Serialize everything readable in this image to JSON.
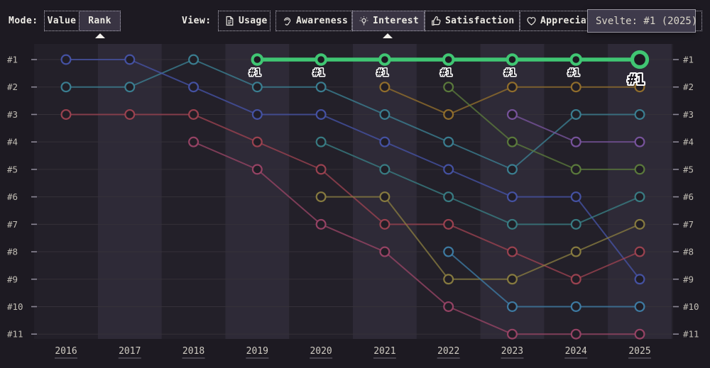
{
  "mode": {
    "label": "Mode:",
    "options": [
      {
        "label": "Value",
        "selected": false
      },
      {
        "label": "Rank",
        "selected": true
      }
    ]
  },
  "view": {
    "label": "View:",
    "tabs": [
      {
        "label": "Usage",
        "icon": "document-icon",
        "selected": false
      },
      {
        "label": "Awareness",
        "icon": "ear-icon",
        "selected": false
      },
      {
        "label": "Interest",
        "icon": "lightbulb-icon",
        "selected": true
      },
      {
        "label": "Satisfaction",
        "icon": "thumbs-up-icon",
        "selected": false
      },
      {
        "label": "Appreciation",
        "icon": "heart-icon",
        "selected": false
      }
    ]
  },
  "tooltip": {
    "text": "Svelte: #1 (2025)"
  },
  "chart_data": {
    "type": "line",
    "subtype": "bump-rank",
    "x_labels": [
      "2016",
      "2017",
      "2018",
      "2019",
      "2020",
      "2021",
      "2022",
      "2023",
      "2024",
      "2025"
    ],
    "y_labels": [
      "#1",
      "#2",
      "#3",
      "#4",
      "#5",
      "#6",
      "#7",
      "#8",
      "#9",
      "#10",
      "#11"
    ],
    "y_axis_sides": "both",
    "grid": true,
    "highlighted_series": "svelte",
    "highlight_color": "#40c673",
    "series": [
      {
        "id": "teal-a",
        "color": "#3c8396",
        "ranks": [
          2,
          2,
          1,
          2,
          2,
          3,
          4,
          5,
          3,
          3
        ]
      },
      {
        "id": "indigo",
        "color": "#4754a9",
        "ranks": [
          1,
          1,
          2,
          3,
          3,
          4,
          5,
          6,
          6,
          9
        ]
      },
      {
        "id": "crimson",
        "color": "#a04351",
        "ranks": [
          3,
          3,
          3,
          4,
          5,
          7,
          7,
          8,
          9,
          8
        ]
      },
      {
        "id": "magenta",
        "color": "#9c4567",
        "ranks": [
          null,
          null,
          4,
          5,
          7,
          8,
          10,
          11,
          11,
          11
        ]
      },
      {
        "id": "teal-b",
        "color": "#3a8187",
        "ranks": [
          null,
          null,
          null,
          null,
          4,
          5,
          6,
          7,
          7,
          6
        ]
      },
      {
        "id": "olive",
        "color": "#8c7f40",
        "ranks": [
          null,
          null,
          null,
          null,
          6,
          6,
          9,
          9,
          8,
          7
        ]
      },
      {
        "id": "amber",
        "color": "#97722c",
        "ranks": [
          null,
          null,
          null,
          null,
          null,
          2,
          3,
          2,
          2,
          2
        ]
      },
      {
        "id": "moss",
        "color": "#5e7e3c",
        "ranks": [
          null,
          null,
          null,
          null,
          null,
          null,
          2,
          4,
          5,
          5
        ]
      },
      {
        "id": "steel",
        "color": "#3f7fa9",
        "ranks": [
          null,
          null,
          null,
          null,
          null,
          null,
          8,
          10,
          10,
          10
        ]
      },
      {
        "id": "purple",
        "color": "#7b55a0",
        "ranks": [
          null,
          null,
          null,
          null,
          null,
          null,
          null,
          3,
          4,
          4
        ]
      },
      {
        "id": "svelte",
        "color": "#40c673",
        "highlight": true,
        "point_label": "#1",
        "ranks": [
          null,
          null,
          null,
          1,
          1,
          1,
          1,
          1,
          1,
          1
        ]
      }
    ]
  }
}
